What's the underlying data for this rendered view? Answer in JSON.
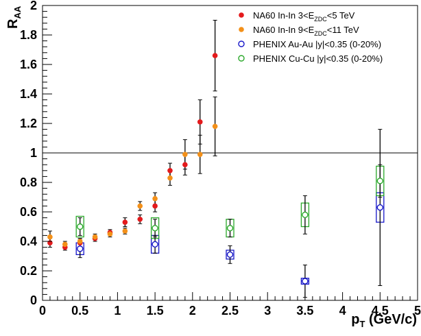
{
  "chart_data": {
    "type": "scatter",
    "title": "",
    "xlabel": {
      "main": "p",
      "sub": "T",
      "unit": " (GeV/c)"
    },
    "ylabel": {
      "main": "R",
      "sub": "AA"
    },
    "xlim": [
      0,
      5
    ],
    "ylim": [
      0,
      2
    ],
    "grid": false,
    "reference_line": {
      "y": 1
    },
    "x_ticks": [
      "0",
      "0.5",
      "1",
      "1.5",
      "2",
      "2.5",
      "3",
      "3.5",
      "4",
      "4.5",
      "5"
    ],
    "y_ticks": [
      "0",
      "0.2",
      "0.4",
      "0.6",
      "0.8",
      "1",
      "1.2",
      "1.4",
      "1.6",
      "1.8",
      "2"
    ],
    "legend_position": "top-right",
    "series": [
      {
        "name": "NA60 In-In 3<E_ZDC<5 TeV",
        "legend": {
          "pre": "NA60 In-In 3<E",
          "sub": "ZDC",
          "post": "<5 TeV"
        },
        "color": "#e41a1c",
        "marker": "filled-circle",
        "points": [
          {
            "x": 0.1,
            "y": 0.39,
            "err": 0.03
          },
          {
            "x": 0.3,
            "y": 0.36,
            "err": 0.02
          },
          {
            "x": 0.5,
            "y": 0.39,
            "err": 0.03
          },
          {
            "x": 0.7,
            "y": 0.42,
            "err": 0.02
          },
          {
            "x": 0.9,
            "y": 0.46,
            "err": 0.02
          },
          {
            "x": 1.1,
            "y": 0.53,
            "err": 0.03
          },
          {
            "x": 1.3,
            "y": 0.55,
            "err": 0.03
          },
          {
            "x": 1.5,
            "y": 0.64,
            "err": 0.04
          },
          {
            "x": 1.7,
            "y": 0.88,
            "err": 0.05
          },
          {
            "x": 1.9,
            "y": 0.92,
            "err": 0.07
          },
          {
            "x": 2.1,
            "y": 1.21,
            "err": 0.15
          },
          {
            "x": 2.3,
            "y": 1.66,
            "err": 0.24
          }
        ]
      },
      {
        "name": "NA60 In-In 9<E_ZDC<11 TeV",
        "legend": {
          "pre": "NA60 In-In 9<E",
          "sub": "ZDC",
          "post": "<11 TeV"
        },
        "color": "#f39019",
        "marker": "filled-circle",
        "points": [
          {
            "x": 0.1,
            "y": 0.43,
            "err": 0.04
          },
          {
            "x": 0.3,
            "y": 0.38,
            "err": 0.02
          },
          {
            "x": 0.5,
            "y": 0.4,
            "err": 0.02
          },
          {
            "x": 0.7,
            "y": 0.43,
            "err": 0.02
          },
          {
            "x": 0.9,
            "y": 0.45,
            "err": 0.02
          },
          {
            "x": 1.1,
            "y": 0.47,
            "err": 0.02
          },
          {
            "x": 1.3,
            "y": 0.64,
            "err": 0.03
          },
          {
            "x": 1.5,
            "y": 0.69,
            "err": 0.04
          },
          {
            "x": 1.7,
            "y": 0.83,
            "err": 0.05
          },
          {
            "x": 1.9,
            "y": 0.99,
            "err": 0.1
          },
          {
            "x": 2.1,
            "y": 0.99,
            "err": 0.13
          },
          {
            "x": 2.3,
            "y": 1.18,
            "err": 0.2
          }
        ]
      },
      {
        "name": "PHENIX Au-Au |y|<0.35 (0-20%)",
        "legend": {
          "pre": "PHENIX Au-Au |y|<0.35 (0-20%)",
          "sub": "",
          "post": ""
        },
        "color": "#1515c8",
        "marker": "open-circle",
        "points": [
          {
            "x": 0.5,
            "y": 0.35,
            "err": 0.06,
            "sys": 0.04
          },
          {
            "x": 1.5,
            "y": 0.38,
            "err": 0.06,
            "sys": 0.06
          },
          {
            "x": 2.5,
            "y": 0.31,
            "err": 0.06,
            "sys": 0.03
          },
          {
            "x": 3.5,
            "y": 0.13,
            "err": 0.11,
            "sys": 0.02
          },
          {
            "x": 4.5,
            "y": 0.63,
            "err": 0.53,
            "sys": 0.1
          }
        ]
      },
      {
        "name": "PHENIX Cu-Cu |y|<0.35 (0-20%)",
        "legend": {
          "pre": "PHENIX Cu-Cu |y|<0.35 (0-20%)",
          "sub": "",
          "post": ""
        },
        "color": "#2aa82a",
        "marker": "open-circle",
        "points": [
          {
            "x": 0.5,
            "y": 0.5,
            "err": 0.06,
            "sys": 0.07
          },
          {
            "x": 1.5,
            "y": 0.49,
            "err": 0.06,
            "sys": 0.07
          },
          {
            "x": 2.5,
            "y": 0.49,
            "err": 0.06,
            "sys": 0.06
          },
          {
            "x": 3.5,
            "y": 0.58,
            "err": 0.13,
            "sys": 0.08
          },
          {
            "x": 4.5,
            "y": 0.81,
            "err": 0.11,
            "sys": 0.1
          }
        ]
      }
    ]
  }
}
